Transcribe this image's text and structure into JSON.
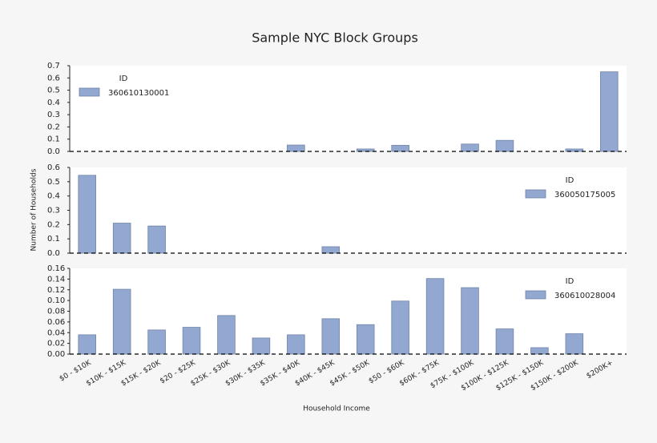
{
  "title": "Sample NYC Block Groups",
  "x_label": "Household Income",
  "y_label": "Number of Households",
  "chart_data": [
    {
      "type": "bar",
      "legend_title": "ID",
      "legend": "upper left",
      "series": [
        {
          "name": "360610130001",
          "color": "#92a8d1",
          "values": [
            0,
            0,
            0,
            0,
            0,
            0,
            0.052,
            0,
            0.02,
            0.05,
            0,
            0.06,
            0.09,
            0,
            0.02,
            0.65
          ]
        }
      ],
      "ylim": [
        0,
        0.7
      ],
      "yticks": [
        {
          "value": 0,
          "label": "0.0"
        },
        0.1,
        0.2,
        0.3,
        0.4,
        0.5,
        0.6,
        0.7
      ]
    },
    {
      "type": "bar",
      "legend_title": "ID",
      "legend": "upper right",
      "series": [
        {
          "name": "360050175005",
          "color": "#92a8d1",
          "values": [
            0.545,
            0.21,
            0.19,
            0,
            0,
            0,
            0,
            0.045,
            0,
            0,
            0,
            0,
            0,
            0,
            0,
            0
          ]
        }
      ],
      "ylim": [
        0,
        0.6
      ],
      "yticks": [
        {
          "value": 0,
          "label": "0.0"
        },
        0.1,
        0.2,
        0.3,
        0.4,
        0.5,
        0.6
      ]
    },
    {
      "type": "bar",
      "legend_title": "ID",
      "legend": "upper right",
      "categories": [
        "$0 - $10K",
        "$10K - $15K",
        "$15K - $20K",
        "$20 - $25K",
        "$25K - $30K",
        "$30K - $35K",
        "$35K - $40K",
        "$40K - $45K",
        "$45K - $50K",
        "$50 - $60K",
        "$60K - $75K",
        "$75K - $100K",
        "$100K - $125K",
        "$125K - $150K",
        "$150K - $200K",
        "$200K+"
      ],
      "series": [
        {
          "name": "360610028004",
          "color": "#92a8d1",
          "values": [
            0.036,
            0.121,
            0.045,
            0.05,
            0.072,
            0.03,
            0.036,
            0.066,
            0.055,
            0.099,
            0.141,
            0.124,
            0.047,
            0.012,
            0.038,
            0
          ]
        }
      ],
      "ylim": [
        0,
        0.16
      ],
      "yticks": [
        {
          "value": 0,
          "label": "0.00"
        },
        {
          "value": 0.02,
          "label": "0.02"
        },
        {
          "value": 0.04,
          "label": "0.04"
        },
        {
          "value": 0.06,
          "label": "0.06"
        },
        {
          "value": 0.08,
          "label": "0.08"
        },
        {
          "value": 0.1,
          "label": "0.10"
        },
        {
          "value": 0.12,
          "label": "0.12"
        },
        {
          "value": 0.14,
          "label": "0.14"
        },
        {
          "value": 0.16,
          "label": "0.16"
        }
      ]
    }
  ]
}
